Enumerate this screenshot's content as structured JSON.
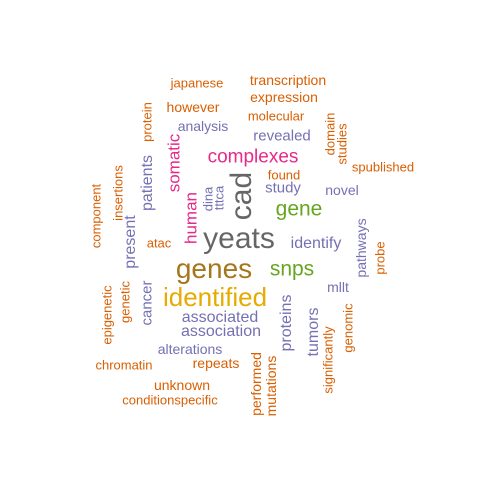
{
  "palette": {
    "orange": "#d95f02",
    "purple": "#7570b3",
    "magenta": "#e7298a",
    "green": "#66a61e",
    "gold": "#e6ab02",
    "brown": "#a6761d",
    "gray": "#666666"
  },
  "words": [
    {
      "text": "yeats",
      "color": "gray",
      "rotated": false
    },
    {
      "text": "cad",
      "color": "gray",
      "rotated": true
    },
    {
      "text": "genes",
      "color": "brown",
      "rotated": false
    },
    {
      "text": "identified",
      "color": "gold",
      "rotated": false
    },
    {
      "text": "snps",
      "color": "green",
      "rotated": false
    },
    {
      "text": "gene",
      "color": "green",
      "rotated": false
    },
    {
      "text": "complexes",
      "color": "magenta",
      "rotated": false
    },
    {
      "text": "human",
      "color": "magenta",
      "rotated": true
    },
    {
      "text": "somatic",
      "color": "magenta",
      "rotated": true
    },
    {
      "text": "identify",
      "color": "purple",
      "rotated": false
    },
    {
      "text": "associated",
      "color": "purple",
      "rotated": false
    },
    {
      "text": "association",
      "color": "purple",
      "rotated": false
    },
    {
      "text": "alterations",
      "color": "purple",
      "rotated": false
    },
    {
      "text": "analysis",
      "color": "purple",
      "rotated": false
    },
    {
      "text": "revealed",
      "color": "purple",
      "rotated": false
    },
    {
      "text": "study",
      "color": "purple",
      "rotated": false
    },
    {
      "text": "novel",
      "color": "purple",
      "rotated": false
    },
    {
      "text": "mllt",
      "color": "purple",
      "rotated": false
    },
    {
      "text": "tumors",
      "color": "purple",
      "rotated": true
    },
    {
      "text": "proteins",
      "color": "purple",
      "rotated": true
    },
    {
      "text": "patients",
      "color": "purple",
      "rotated": true
    },
    {
      "text": "present",
      "color": "purple",
      "rotated": true
    },
    {
      "text": "cancer",
      "color": "purple",
      "rotated": true
    },
    {
      "text": "dina",
      "color": "purple",
      "rotated": true
    },
    {
      "text": "tttca",
      "color": "purple",
      "rotated": true
    },
    {
      "text": "pathways",
      "color": "purple",
      "rotated": true
    },
    {
      "text": "japanese",
      "color": "orange",
      "rotated": false
    },
    {
      "text": "transcription",
      "color": "orange",
      "rotated": false
    },
    {
      "text": "expression",
      "color": "orange",
      "rotated": false
    },
    {
      "text": "however",
      "color": "orange",
      "rotated": false
    },
    {
      "text": "molecular",
      "color": "orange",
      "rotated": false
    },
    {
      "text": "found",
      "color": "orange",
      "rotated": false
    },
    {
      "text": "spublished",
      "color": "orange",
      "rotated": false
    },
    {
      "text": "atac",
      "color": "orange",
      "rotated": false
    },
    {
      "text": "repeats",
      "color": "orange",
      "rotated": false
    },
    {
      "text": "chromatin",
      "color": "orange",
      "rotated": false
    },
    {
      "text": "unknown",
      "color": "orange",
      "rotated": false
    },
    {
      "text": "conditionspecific",
      "color": "orange",
      "rotated": false
    },
    {
      "text": "protein",
      "color": "orange",
      "rotated": true
    },
    {
      "text": "domain",
      "color": "orange",
      "rotated": true
    },
    {
      "text": "studies",
      "color": "orange",
      "rotated": true
    },
    {
      "text": "insertions",
      "color": "orange",
      "rotated": true
    },
    {
      "text": "component",
      "color": "orange",
      "rotated": true
    },
    {
      "text": "genetic",
      "color": "orange",
      "rotated": true
    },
    {
      "text": "epigenetic",
      "color": "orange",
      "rotated": true
    },
    {
      "text": "significantly",
      "color": "orange",
      "rotated": true
    },
    {
      "text": "genomic",
      "color": "orange",
      "rotated": true
    },
    {
      "text": "probe",
      "color": "orange",
      "rotated": true
    },
    {
      "text": "performed",
      "color": "orange",
      "rotated": true
    },
    {
      "text": "mutations",
      "color": "orange",
      "rotated": true
    }
  ]
}
